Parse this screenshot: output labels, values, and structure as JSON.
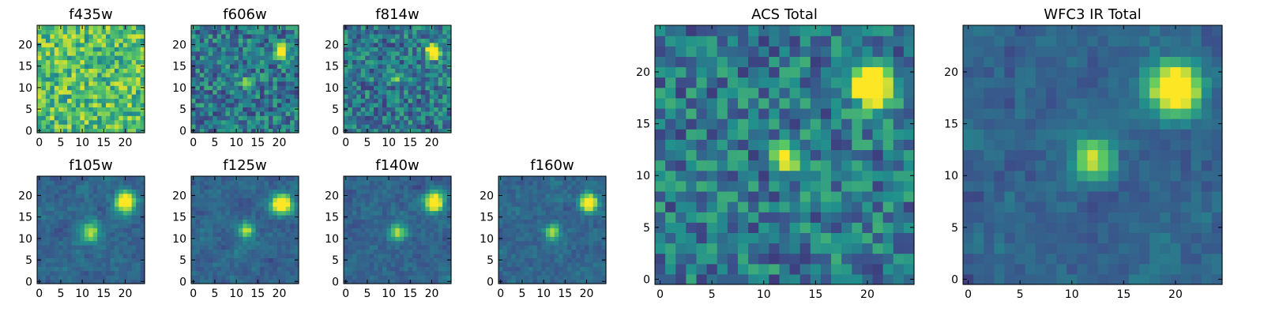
{
  "figure": {
    "colormap": [
      "#440154",
      "#3b528b",
      "#21908d",
      "#5dc963",
      "#fde725"
    ]
  },
  "chart_data": [
    {
      "type": "heatmap",
      "title": "f435w",
      "grid": false,
      "xlim": [
        0,
        24
      ],
      "ylim": [
        0,
        24
      ],
      "xticks": [
        0,
        5,
        10,
        15,
        20
      ],
      "yticks": [
        0,
        5,
        10,
        15,
        20
      ],
      "style": "noisy-bright",
      "sources": [],
      "seed": 11
    },
    {
      "type": "heatmap",
      "title": "f606w",
      "grid": false,
      "xlim": [
        0,
        24
      ],
      "ylim": [
        0,
        24
      ],
      "xticks": [
        0,
        5,
        10,
        15,
        20
      ],
      "yticks": [
        0,
        5,
        10,
        15,
        20
      ],
      "style": "noisy",
      "sources": [
        {
          "x": 20.5,
          "y": 18.5,
          "amp": 1.0,
          "sigma": 1.0
        },
        {
          "x": 12,
          "y": 11.5,
          "amp": 0.55,
          "sigma": 0.7
        }
      ],
      "seed": 22
    },
    {
      "type": "heatmap",
      "title": "f814w",
      "grid": false,
      "xlim": [
        0,
        24
      ],
      "ylim": [
        0,
        24
      ],
      "xticks": [
        0,
        5,
        10,
        15,
        20
      ],
      "yticks": [
        0,
        5,
        10,
        15,
        20
      ],
      "style": "noisy",
      "sources": [
        {
          "x": 20.5,
          "y": 18.5,
          "amp": 1.0,
          "sigma": 1.1
        },
        {
          "x": 12,
          "y": 12,
          "amp": 0.6,
          "sigma": 0.7
        }
      ],
      "seed": 33
    },
    {
      "type": "heatmap",
      "title": "f105w",
      "grid": false,
      "xlim": [
        0,
        24
      ],
      "ylim": [
        0,
        24
      ],
      "xticks": [
        0,
        5,
        10,
        15,
        20
      ],
      "yticks": [
        0,
        5,
        10,
        15,
        20
      ],
      "style": "smooth",
      "sources": [
        {
          "x": 20,
          "y": 18.5,
          "amp": 1.0,
          "sigma": 1.6
        },
        {
          "x": 12,
          "y": 11.5,
          "amp": 0.55,
          "sigma": 1.6
        }
      ],
      "seed": 44
    },
    {
      "type": "heatmap",
      "title": "f125w",
      "grid": false,
      "xlim": [
        0,
        24
      ],
      "ylim": [
        0,
        24
      ],
      "xticks": [
        0,
        5,
        10,
        15,
        20
      ],
      "yticks": [
        0,
        5,
        10,
        15,
        20
      ],
      "style": "smooth",
      "sources": [
        {
          "x": 20.5,
          "y": 18,
          "amp": 1.0,
          "sigma": 1.6
        },
        {
          "x": 12.5,
          "y": 12,
          "amp": 0.65,
          "sigma": 1.2
        }
      ],
      "seed": 55
    },
    {
      "type": "heatmap",
      "title": "f140w",
      "grid": false,
      "xlim": [
        0,
        24
      ],
      "ylim": [
        0,
        24
      ],
      "xticks": [
        0,
        5,
        10,
        15,
        20
      ],
      "yticks": [
        0,
        5,
        10,
        15,
        20
      ],
      "style": "smooth",
      "sources": [
        {
          "x": 20.5,
          "y": 18.5,
          "amp": 1.0,
          "sigma": 1.5
        },
        {
          "x": 12,
          "y": 11.5,
          "amp": 0.55,
          "sigma": 1.4
        }
      ],
      "seed": 66
    },
    {
      "type": "heatmap",
      "title": "f160w",
      "grid": false,
      "xlim": [
        0,
        24
      ],
      "ylim": [
        0,
        24
      ],
      "xticks": [
        0,
        5,
        10,
        15,
        20
      ],
      "yticks": [
        0,
        5,
        10,
        15,
        20
      ],
      "style": "smooth",
      "sources": [
        {
          "x": 20.5,
          "y": 18.5,
          "amp": 1.0,
          "sigma": 1.4
        },
        {
          "x": 12,
          "y": 11.5,
          "amp": 0.6,
          "sigma": 1.1
        }
      ],
      "seed": 77
    },
    {
      "type": "heatmap",
      "title": "ACS Total",
      "grid": false,
      "xlim": [
        0,
        24
      ],
      "ylim": [
        0,
        24
      ],
      "xticks": [
        0,
        5,
        10,
        15,
        20
      ],
      "yticks": [
        0,
        5,
        10,
        15,
        20
      ],
      "style": "noisy",
      "sources": [
        {
          "x": 20.5,
          "y": 18.5,
          "amp": 1.0,
          "sigma": 1.3
        },
        {
          "x": 12,
          "y": 12,
          "amp": 0.7,
          "sigma": 0.9
        }
      ],
      "seed": 88
    },
    {
      "type": "heatmap",
      "title": "WFC3 IR Total",
      "grid": false,
      "xlim": [
        0,
        24
      ],
      "ylim": [
        0,
        24
      ],
      "xticks": [
        0,
        5,
        10,
        15,
        20
      ],
      "yticks": [
        0,
        5,
        10,
        15,
        20
      ],
      "style": "smooth",
      "sources": [
        {
          "x": 20,
          "y": 18.5,
          "amp": 1.0,
          "sigma": 1.7
        },
        {
          "x": 12,
          "y": 11.5,
          "amp": 0.65,
          "sigma": 1.4
        }
      ],
      "seed": 99
    }
  ]
}
